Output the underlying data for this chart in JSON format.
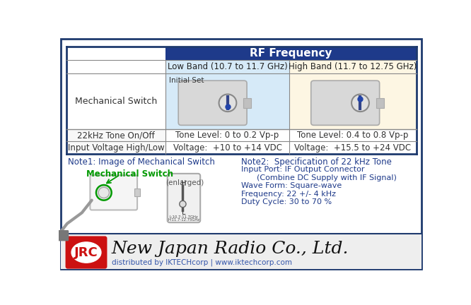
{
  "bg_color": "#ffffff",
  "border_color": "#1e3a6e",
  "table_header_bg": "#1e3a8a",
  "table_header_text": "#ffffff",
  "low_band_bg": "#d6eaf8",
  "high_band_bg": "#fdf6e3",
  "header_rf": "RF Frequency",
  "col_low": "Low Band (10.7 to 11.7 GHz)",
  "col_high": "High Band (11.7 to 12.75 GHz)",
  "row1_label": "Mechanical Switch",
  "row1_low_prefix": "Initial Set",
  "row2_label": "22kHz Tone On/Off",
  "row2_low": "Tone Level: 0 to 0.2 Vp-p",
  "row2_high": "Tone Level: 0.4 to 0.8 Vp-p",
  "row3_label": "Input Voltage High/Low",
  "row3_low": "Voltage:  +10 to +14 VDC",
  "row3_high": "Voltage:  +15.5 to +24 VDC",
  "note1_title": "Note1: Image of Mechanical Switch",
  "note1_title_color": "#1e3a8a",
  "mech_switch_label": "Mechanical Switch",
  "mech_switch_label_color": "#009900",
  "enlarged_text": "(enlarged)",
  "note2_title": "Note2:  Specification of 22 kHz Tone",
  "note2_title_color": "#1e3a8a",
  "note2_line1": "Input Port: IF Output Connector",
  "note2_line2": "(Combine DC Supply with IF Signal)",
  "note2_line3": "Wave Form: Square-wave",
  "note2_line4": "Frequency: 22 +/- 4 kHz",
  "note2_line5": "Duty Cycle: 30 to 70 %",
  "note2_color": "#1e3a8a",
  "footer_bg": "#eeeeee",
  "footer_border": "#1e3a6e",
  "jrc_box_color": "#cc1111",
  "jrc_text": "JRC",
  "company_name": "New Japan Radio Co., Ltd.",
  "distributor": "distributed by IKTECHcorp | www.iktechcorp.com",
  "outer_border_color": "#1e3a6e",
  "table_line_color": "#888888",
  "table_dark_line_color": "#1e3a6e"
}
